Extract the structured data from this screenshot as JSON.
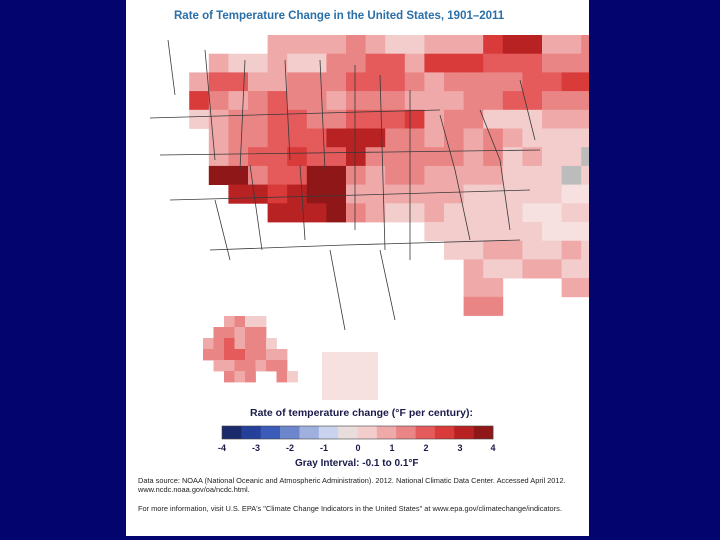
{
  "title": "Rate of Temperature Change in the United States, 1901–2011",
  "legend": {
    "title": "Rate of temperature change (°F per century):",
    "ticks": [
      "-4",
      "-3",
      "-2",
      "-1",
      "0",
      "1",
      "2",
      "3",
      "4"
    ],
    "gray_interval": "Gray Interval: -0.1 to 0.1°F",
    "colors": [
      "#1b2a6b",
      "#24409a",
      "#3b5cb8",
      "#6c86cc",
      "#9fb0de",
      "#c9d2ee",
      "#e8dcdc",
      "#f3cccc",
      "#f0a9a9",
      "#ea8585",
      "#e55a5a",
      "#d93a3a",
      "#b82222",
      "#8f1717"
    ]
  },
  "notes": {
    "source": "Data source: NOAA (National Oceanic and Atmospheric Administration). 2012. National Climatic Data Center. Accessed April 2012. www.ncdc.noaa.gov/oa/ncdc.html.",
    "more_info": "For more information, visit U.S. EPA's \"Climate Change Indicators in the United States\" at www.epa.gov/climatechange/indicators."
  }
}
